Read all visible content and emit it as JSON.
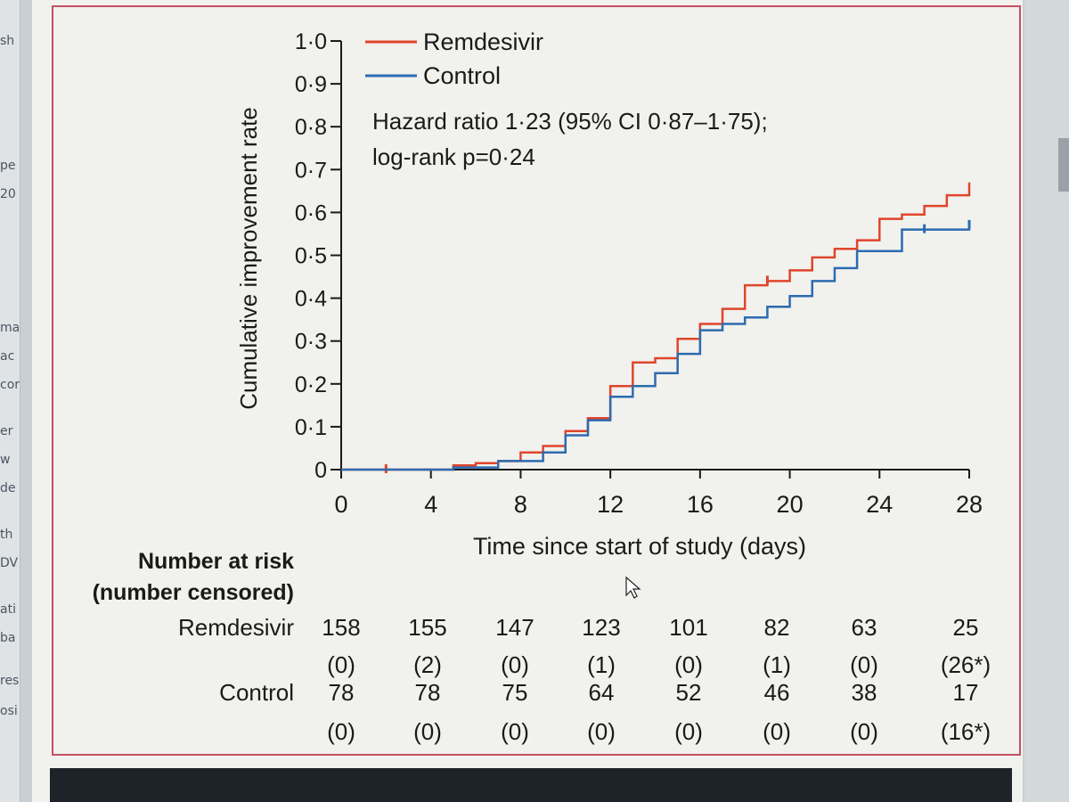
{
  "left_fragments": [
    "sh",
    "pe",
    "20",
    "ma",
    "ac",
    "cor",
    "er",
    "w",
    "de",
    "th",
    "DV",
    "ati",
    "ba",
    "res",
    "osi"
  ],
  "colors": {
    "remdesivir": "#e0452b",
    "control": "#2d6bb0",
    "frame": "#c35062"
  },
  "chart_data": {
    "type": "line",
    "style": "kaplan-meier-step",
    "xlabel": "Time since start of study (days)",
    "ylabel": "Cumulative improvement rate",
    "xlim": [
      0,
      28
    ],
    "ylim": [
      0,
      1.0
    ],
    "xticks": [
      "0",
      "4",
      "8",
      "12",
      "16",
      "20",
      "24",
      "28"
    ],
    "yticks": [
      "0",
      "0·1",
      "0·2",
      "0·3",
      "0·4",
      "0·5",
      "0·6",
      "0·7",
      "0·8",
      "0·9",
      "1·0"
    ],
    "legend_position": "top-left",
    "annotation": [
      "Hazard ratio 1·23 (95% CI 0·87–1·75);",
      "log-rank p=0·24"
    ],
    "series": [
      {
        "name": "Remdesivir",
        "color": "#e0452b",
        "steps": [
          [
            0,
            0
          ],
          [
            4,
            0
          ],
          [
            5,
            0.01
          ],
          [
            6,
            0.015
          ],
          [
            7,
            0.02
          ],
          [
            8,
            0.04
          ],
          [
            9,
            0.055
          ],
          [
            10,
            0.09
          ],
          [
            11,
            0.12
          ],
          [
            12,
            0.195
          ],
          [
            13,
            0.25
          ],
          [
            14,
            0.26
          ],
          [
            15,
            0.305
          ],
          [
            16,
            0.34
          ],
          [
            17,
            0.375
          ],
          [
            18,
            0.43
          ],
          [
            19,
            0.44
          ],
          [
            20,
            0.465
          ],
          [
            21,
            0.495
          ],
          [
            22,
            0.515
          ],
          [
            23,
            0.535
          ],
          [
            24,
            0.585
          ],
          [
            25,
            0.595
          ],
          [
            26,
            0.615
          ],
          [
            27,
            0.64
          ],
          [
            28,
            0.67
          ]
        ],
        "censor": [
          [
            2,
            0
          ],
          [
            19,
            0.44
          ]
        ]
      },
      {
        "name": "Control",
        "color": "#2d6bb0",
        "steps": [
          [
            0,
            0
          ],
          [
            5,
            0.005
          ],
          [
            7,
            0.02
          ],
          [
            9,
            0.04
          ],
          [
            10,
            0.08
          ],
          [
            11,
            0.115
          ],
          [
            12,
            0.17
          ],
          [
            13,
            0.195
          ],
          [
            14,
            0.225
          ],
          [
            15,
            0.27
          ],
          [
            16,
            0.325
          ],
          [
            17,
            0.34
          ],
          [
            18,
            0.355
          ],
          [
            19,
            0.38
          ],
          [
            20,
            0.405
          ],
          [
            21,
            0.44
          ],
          [
            22,
            0.47
          ],
          [
            23,
            0.51
          ],
          [
            25,
            0.56
          ],
          [
            28,
            0.57
          ]
        ],
        "censor": [
          [
            26,
            0.56
          ],
          [
            28,
            0.57
          ]
        ]
      }
    ]
  },
  "risk_table": {
    "title_line1": "Number at risk",
    "title_line2": "(number censored)",
    "rows": [
      {
        "label": "Remdesivir",
        "at_risk": [
          "158",
          "155",
          "147",
          "123",
          "101",
          "82",
          "63",
          "25"
        ],
        "censored": [
          "(0)",
          "(2)",
          "(0)",
          "(1)",
          "(0)",
          "(1)",
          "(0)",
          "(26*)"
        ]
      },
      {
        "label": "Control",
        "at_risk": [
          "78",
          "78",
          "75",
          "64",
          "52",
          "46",
          "38",
          "17"
        ],
        "censored": [
          "(0)",
          "(0)",
          "(0)",
          "(0)",
          "(0)",
          "(0)",
          "(0)",
          "(16*)"
        ]
      }
    ]
  }
}
